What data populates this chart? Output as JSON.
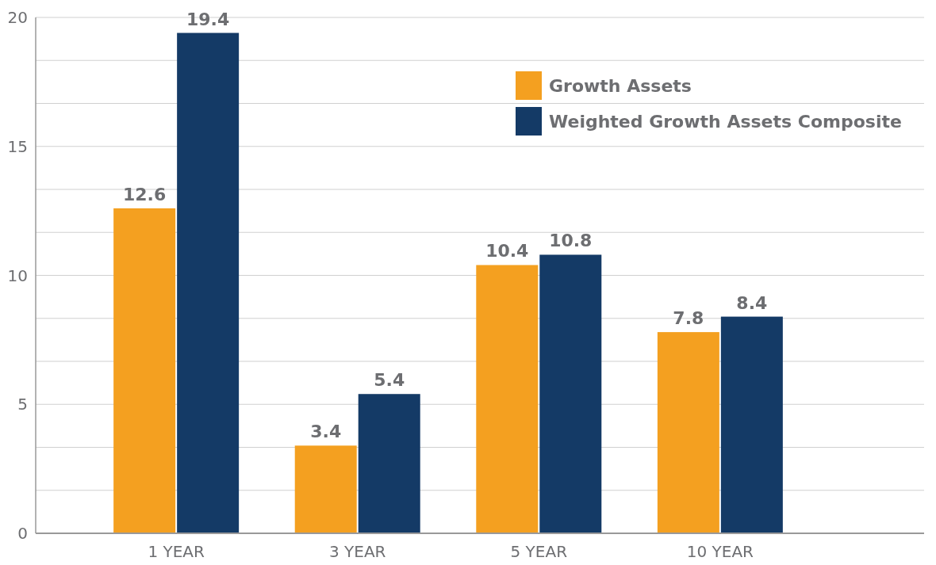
{
  "chart_data": {
    "type": "bar",
    "categories": [
      "1 YEAR",
      "3 YEAR",
      "5 YEAR",
      "10 YEAR"
    ],
    "series": [
      {
        "name": "Growth Assets",
        "color": "#f4a020",
        "values": [
          12.6,
          3.4,
          10.4,
          7.8
        ]
      },
      {
        "name": "Weighted Growth Assets Composite",
        "color": "#143a66",
        "values": [
          19.4,
          5.4,
          10.8,
          8.4
        ]
      }
    ],
    "ylim": [
      0,
      20
    ],
    "yticks": [
      0,
      {
        "value": 1.667,
        "label": null
      },
      {
        "value": 3.333,
        "label": null
      },
      5,
      {
        "value": 6.667,
        "label": null
      },
      {
        "value": 8.333,
        "label": null
      },
      10,
      {
        "value": 11.667,
        "label": null
      },
      {
        "value": 13.333,
        "label": null
      },
      15,
      {
        "value": 16.667,
        "label": null
      },
      {
        "value": 18.333,
        "label": null
      },
      20
    ],
    "grid": "y",
    "legend": "top right",
    "data_labels": true
  }
}
